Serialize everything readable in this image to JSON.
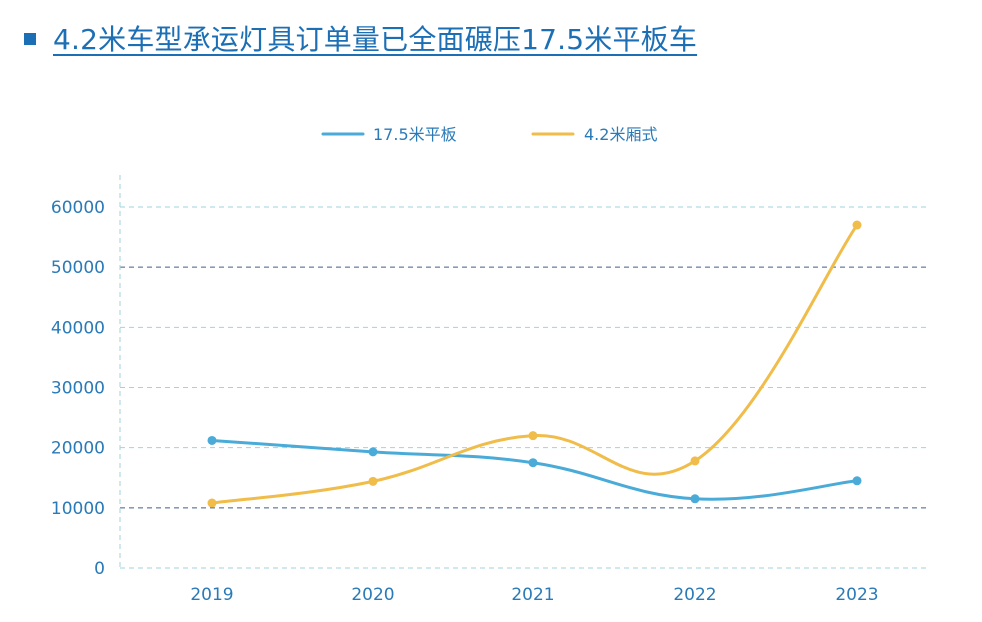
{
  "title": "4.2米车型承运灯具订单量已全面碾压17.5米平板车",
  "colors": {
    "title": "#1c6fb5",
    "axis_text": "#2a7ab8",
    "grid_light": "#9fd3df",
    "grid_dark": "#3d5f86"
  },
  "chart_data": {
    "type": "line",
    "title": "4.2米车型承运灯具订单量已全面碾压17.5米平板车",
    "xlabel": "",
    "ylabel": "",
    "categories": [
      "2019",
      "2020",
      "2021",
      "2022",
      "2023"
    ],
    "yticks": [
      "0",
      "10000",
      "20000",
      "30000",
      "40000",
      "50000",
      "60000"
    ],
    "ylim": [
      0,
      60000
    ],
    "grid": true,
    "legend_position": "top-center",
    "smooth": true,
    "series": [
      {
        "name": "17.5米平板",
        "color": "#4aabd8",
        "values": [
          21200,
          19300,
          17500,
          11500,
          14500
        ]
      },
      {
        "name": "4.2米厢式",
        "color": "#f0bc4a",
        "values": [
          10800,
          14400,
          22000,
          17800,
          57000
        ]
      }
    ]
  }
}
